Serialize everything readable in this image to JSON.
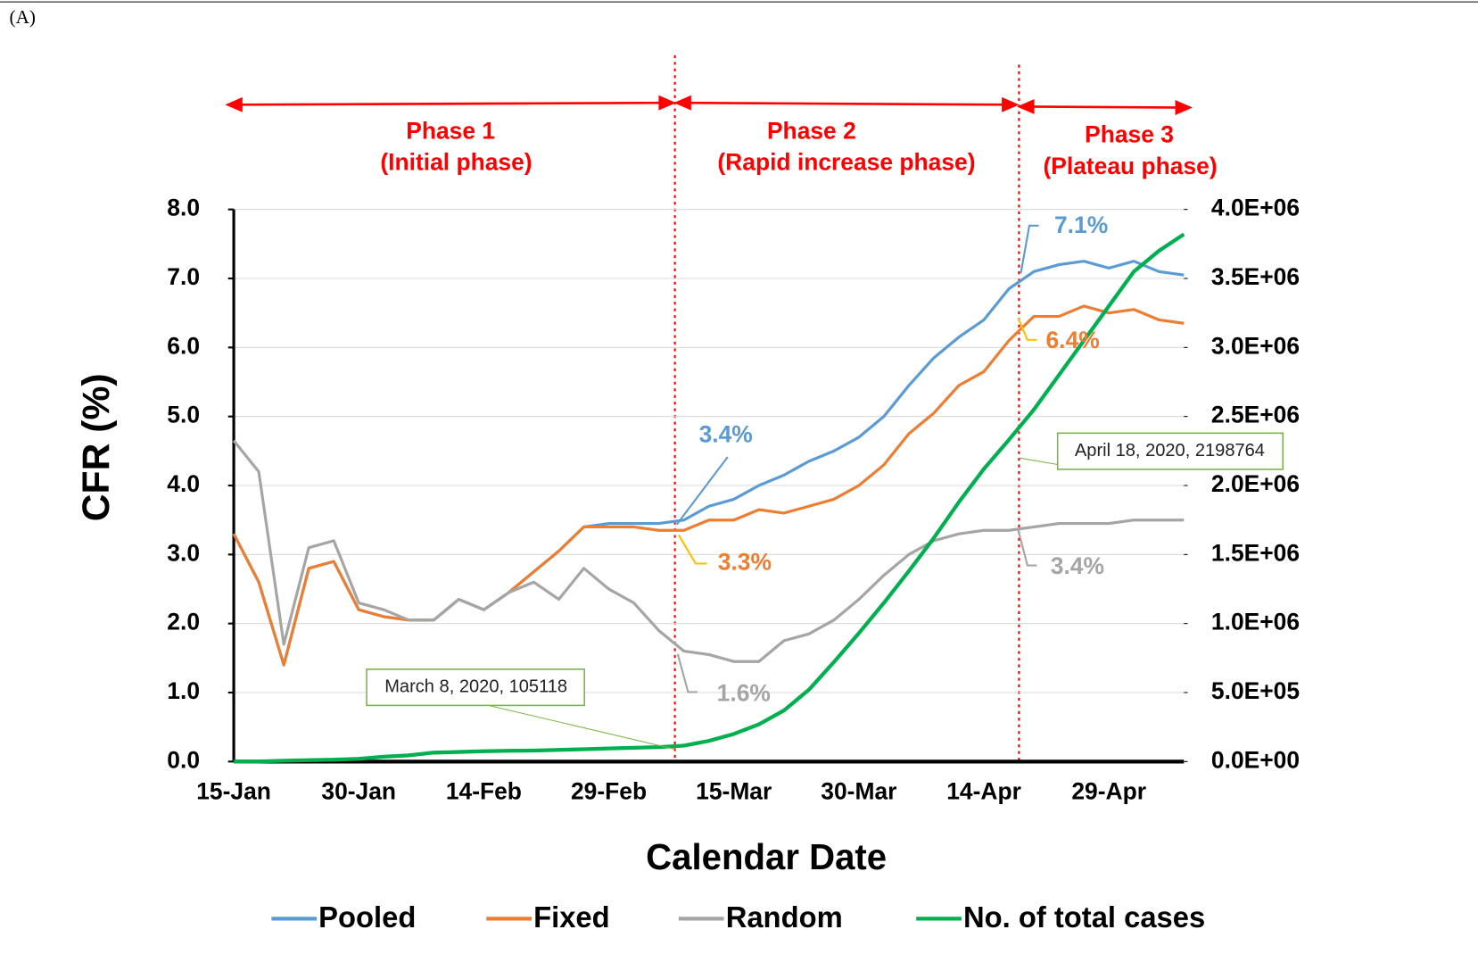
{
  "chart_data": {
    "type": "line",
    "panel_label": "(A)",
    "phases": [
      "Phase 1",
      "(Initial phase)",
      "Phase 2",
      "(Rapid increase phase)",
      "Phase 3",
      "(Plateau phase)"
    ],
    "ylabel": "CFR (%)",
    "xlabel": "Calendar Date",
    "categories": [
      "15-Jan",
      null,
      null,
      null,
      null,
      "30-Jan",
      null,
      null,
      null,
      null,
      "14-Feb",
      null,
      null,
      null,
      null,
      "29-Feb",
      null,
      null,
      null,
      null,
      "15-Mar",
      null,
      null,
      null,
      null,
      "30-Mar",
      null,
      null,
      null,
      null,
      "14-Apr",
      null,
      null,
      null,
      null,
      "29-Apr",
      null,
      null,
      null
    ],
    "ylim": [
      0,
      8
    ],
    "yticks": [
      {
        "value": 0,
        "label": "0.0"
      },
      {
        "value": 1,
        "label": "1.0"
      },
      {
        "value": 2,
        "label": "2.0"
      },
      {
        "value": 3,
        "label": "3.0"
      },
      {
        "value": 4,
        "label": "4.0"
      },
      {
        "value": 5,
        "label": "5.0"
      },
      {
        "value": 6,
        "label": "6.0"
      },
      {
        "value": 7,
        "label": "7.0"
      },
      {
        "value": 8,
        "label": "8.0"
      }
    ],
    "y2lim": [
      0,
      4000000
    ],
    "y2ticks": [
      {
        "value": 0,
        "label": "0.0E+00"
      },
      {
        "value": 500000,
        "label": "5.0E+05"
      },
      {
        "value": 1000000,
        "label": "1.0E+06"
      },
      {
        "value": 1500000,
        "label": "1.5E+06"
      },
      {
        "value": 2000000,
        "label": "2.0E+06"
      },
      {
        "value": 2500000,
        "label": "2.5E+06"
      },
      {
        "value": 3000000,
        "label": "3.0E+06"
      },
      {
        "value": 3500000,
        "label": "3.5E+06"
      },
      {
        "value": 4000000,
        "label": "4.0E+06"
      }
    ],
    "grid": true,
    "series": [
      {
        "name": "Pooled",
        "color": "#5b9bd5",
        "values": [
          3.3,
          2.6,
          1.4,
          2.8,
          2.9,
          2.2,
          2.1,
          2.05,
          2.05,
          2.35,
          2.2,
          2.45,
          2.75,
          3.05,
          3.4,
          3.45,
          3.45,
          3.45,
          3.5,
          3.7,
          3.8,
          4.0,
          4.15,
          4.35,
          4.5,
          4.7,
          5.0,
          5.45,
          5.85,
          6.15,
          6.4,
          6.85,
          7.1,
          7.2,
          7.25,
          7.15,
          7.25,
          7.1,
          7.05
        ]
      },
      {
        "name": "Fixed",
        "color": "#ed7d31",
        "values": [
          3.3,
          2.6,
          1.4,
          2.8,
          2.9,
          2.2,
          2.1,
          2.05,
          2.05,
          2.35,
          2.2,
          2.45,
          2.75,
          3.05,
          3.4,
          3.4,
          3.4,
          3.35,
          3.35,
          3.5,
          3.5,
          3.65,
          3.6,
          3.7,
          3.8,
          4.0,
          4.3,
          4.75,
          5.05,
          5.45,
          5.65,
          6.1,
          6.45,
          6.45,
          6.6,
          6.5,
          6.55,
          6.4,
          6.35
        ]
      },
      {
        "name": "Random",
        "color": "#a5a5a5",
        "values": [
          4.65,
          4.2,
          1.7,
          3.1,
          3.2,
          2.3,
          2.2,
          2.05,
          2.05,
          2.35,
          2.2,
          2.45,
          2.6,
          2.35,
          2.8,
          2.5,
          2.3,
          1.9,
          1.6,
          1.55,
          1.45,
          1.45,
          1.75,
          1.85,
          2.05,
          2.35,
          2.7,
          3.0,
          3.2,
          3.3,
          3.35,
          3.35,
          3.4,
          3.45,
          3.45,
          3.45,
          3.5,
          3.5,
          3.5
        ]
      },
      {
        "name": "No. of total cases",
        "color": "#00b050",
        "axis": "y2",
        "values": [
          0,
          1000,
          6000,
          10000,
          14000,
          20000,
          35000,
          45000,
          65000,
          70000,
          75000,
          78000,
          80000,
          85000,
          90000,
          95000,
          100000,
          105000,
          115000,
          150000,
          200000,
          270000,
          370000,
          520000,
          720000,
          930000,
          1150000,
          1380000,
          1620000,
          1880000,
          2120000,
          2330000,
          2550000,
          2800000,
          3050000,
          3300000,
          3550000,
          3700000,
          3820000
        ]
      }
    ],
    "annotations": [
      "3.4%",
      "3.3%",
      "1.6%",
      "7.1%",
      "6.4%",
      "3.4%",
      "March 8, 2020, 105118",
      "April 18, 2020, 2198764"
    ]
  }
}
